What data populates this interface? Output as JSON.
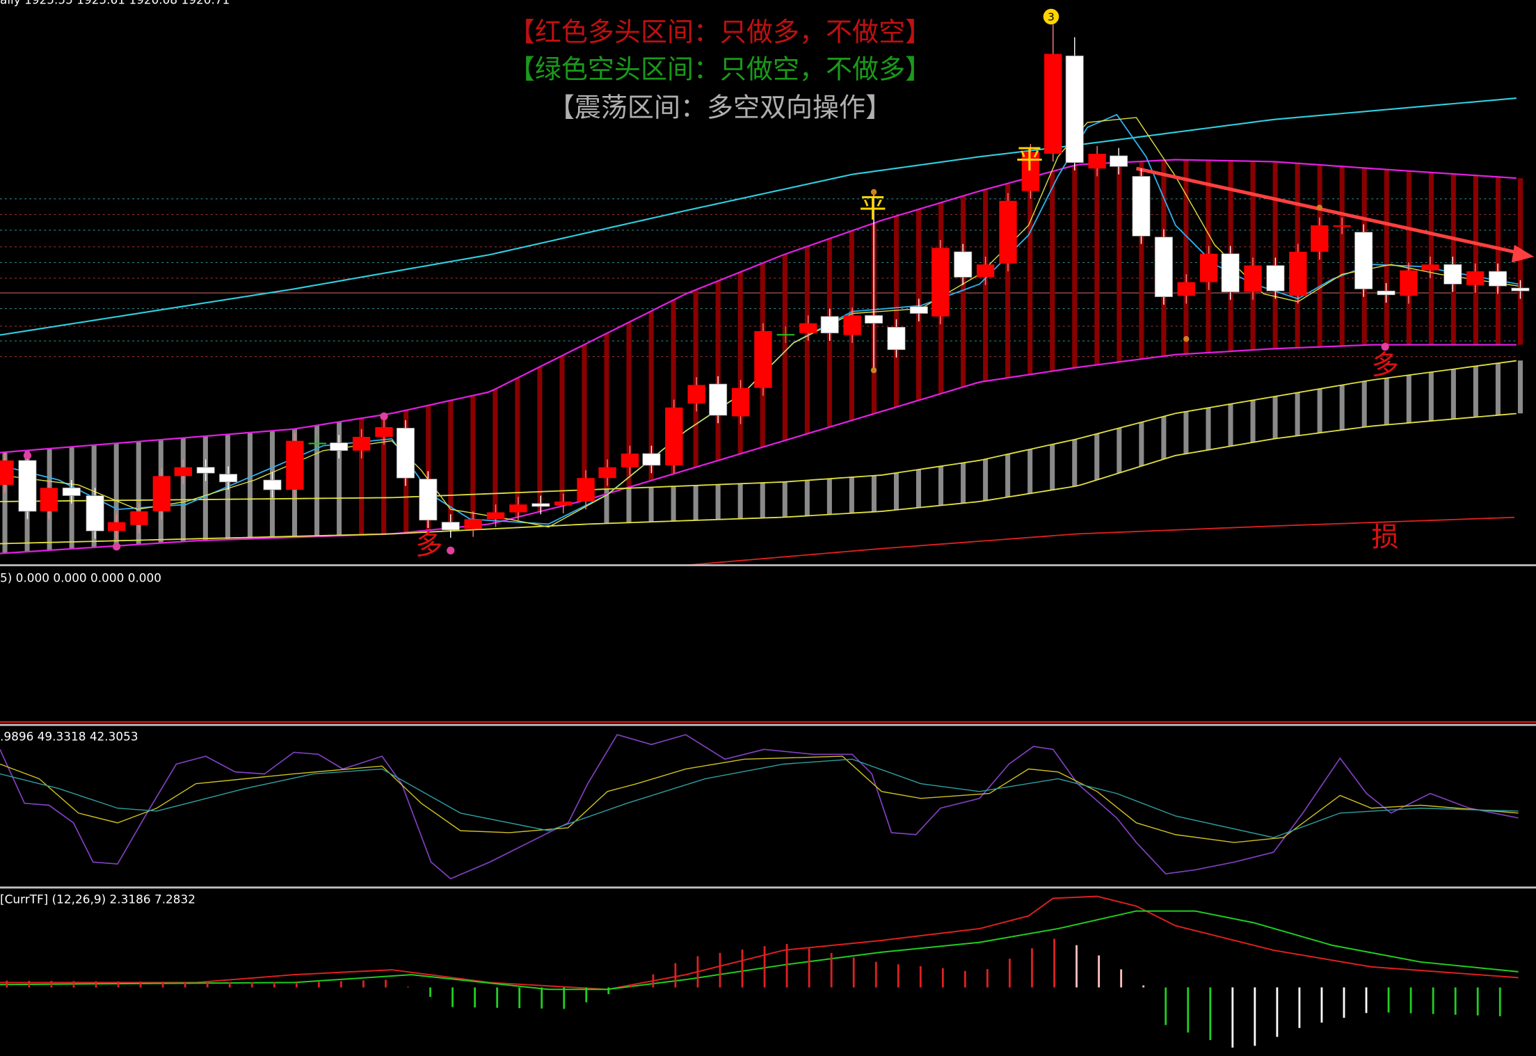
{
  "header": {
    "price_info": "aily  1925.55 1925.61 1920.08 1920.71"
  },
  "banner": {
    "line1": "【红色多头区间：只做多，不做空】",
    "line2": "【绿色空头区间：只做空，不做多】",
    "line3": "【震荡区间：多空双向操作】"
  },
  "markers": {
    "peak": "3",
    "exit1": "平",
    "exit2": "平",
    "long1": "多",
    "long2": "多",
    "stop": "损"
  },
  "panels": {
    "panel1": "5) 0.000 0.000 0.000 0.000",
    "panel2": ".9896 49.3318 42.3053",
    "panel3": "[CurrTF] (12,26,9) 2.3186 7.2832"
  }
}
